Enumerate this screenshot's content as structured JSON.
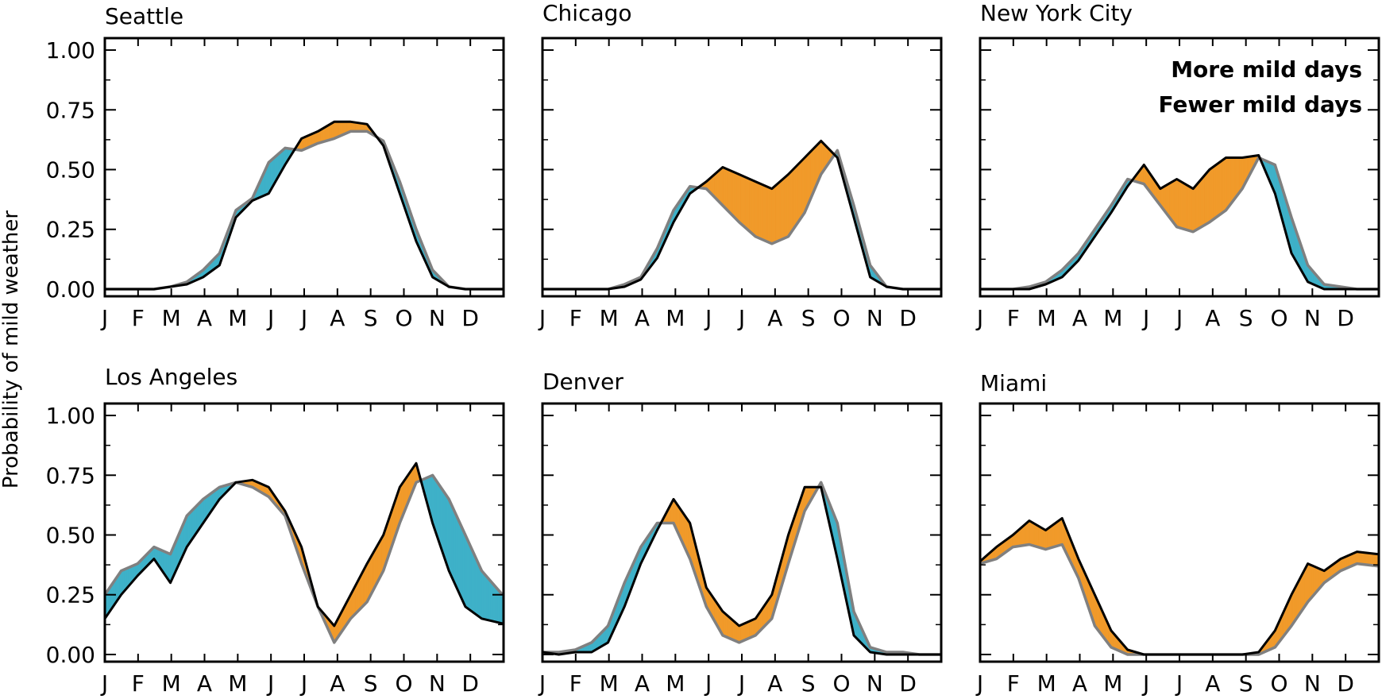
{
  "figure": {
    "ylabel": "Probability of mild weather",
    "legend": {
      "placement": "top-right of New York City panel",
      "more_label": "More mild days",
      "fewer_label": "Fewer mild days"
    },
    "colors": {
      "more": "#3eb1c8",
      "fewer": "#f19a2a",
      "line_a": "#000000",
      "line_b": "#808080"
    },
    "month_ticks": [
      "J",
      "F",
      "M",
      "A",
      "M",
      "J",
      "J",
      "A",
      "S",
      "O",
      "N",
      "D"
    ],
    "y_ticks": [
      "0.00",
      "0.25",
      "0.50",
      "0.75",
      "1.00"
    ]
  },
  "chart_data": [
    {
      "type": "area",
      "title": "Seattle",
      "ylabel": "Probability of mild weather",
      "xlim": [
        0,
        365
      ],
      "ylim": [
        -0.03,
        1.05
      ],
      "x": [
        0,
        15,
        30,
        45,
        60,
        75,
        90,
        105,
        120,
        135,
        150,
        165,
        180,
        195,
        210,
        225,
        240,
        255,
        270,
        285,
        300,
        315,
        330,
        345,
        364
      ],
      "black": [
        0,
        0,
        0,
        0,
        0.01,
        0.02,
        0.05,
        0.1,
        0.3,
        0.37,
        0.4,
        0.52,
        0.63,
        0.66,
        0.7,
        0.7,
        0.69,
        0.6,
        0.4,
        0.2,
        0.05,
        0.01,
        0,
        0,
        0
      ],
      "gray": [
        0,
        0,
        0,
        0,
        0.01,
        0.03,
        0.08,
        0.15,
        0.33,
        0.38,
        0.53,
        0.59,
        0.58,
        0.61,
        0.63,
        0.66,
        0.66,
        0.62,
        0.45,
        0.25,
        0.08,
        0.01,
        0,
        0,
        0
      ]
    },
    {
      "type": "area",
      "title": "Chicago",
      "xlim": [
        0,
        365
      ],
      "ylim": [
        -0.03,
        1.05
      ],
      "x": [
        0,
        15,
        30,
        45,
        60,
        75,
        90,
        105,
        120,
        135,
        150,
        165,
        180,
        195,
        210,
        225,
        240,
        255,
        270,
        285,
        300,
        315,
        330,
        345,
        364
      ],
      "black": [
        0,
        0,
        0,
        0,
        0,
        0.01,
        0.04,
        0.13,
        0.28,
        0.4,
        0.45,
        0.51,
        0.48,
        0.45,
        0.42,
        0.48,
        0.55,
        0.62,
        0.55,
        0.3,
        0.05,
        0.01,
        0,
        0,
        0
      ],
      "gray": [
        0,
        0,
        0,
        0,
        0,
        0.02,
        0.05,
        0.17,
        0.33,
        0.43,
        0.42,
        0.35,
        0.28,
        0.22,
        0.19,
        0.22,
        0.32,
        0.48,
        0.58,
        0.35,
        0.1,
        0.01,
        0,
        0,
        0
      ]
    },
    {
      "type": "area",
      "title": "New York City",
      "xlim": [
        0,
        365
      ],
      "ylim": [
        -0.03,
        1.05
      ],
      "x": [
        0,
        15,
        30,
        45,
        60,
        75,
        90,
        105,
        120,
        135,
        150,
        165,
        180,
        195,
        210,
        225,
        240,
        255,
        270,
        285,
        300,
        315,
        330,
        345,
        364
      ],
      "black": [
        0,
        0,
        0,
        0,
        0.02,
        0.05,
        0.12,
        0.22,
        0.32,
        0.43,
        0.52,
        0.42,
        0.46,
        0.42,
        0.5,
        0.55,
        0.55,
        0.56,
        0.4,
        0.15,
        0.03,
        0,
        0,
        0,
        0
      ],
      "gray": [
        0,
        0,
        0,
        0.01,
        0.03,
        0.08,
        0.15,
        0.25,
        0.35,
        0.46,
        0.44,
        0.35,
        0.26,
        0.24,
        0.28,
        0.33,
        0.42,
        0.55,
        0.52,
        0.3,
        0.1,
        0.02,
        0.01,
        0,
        0
      ]
    },
    {
      "type": "area",
      "title": "Los Angeles",
      "xlim": [
        0,
        365
      ],
      "ylim": [
        -0.03,
        1.05
      ],
      "x": [
        0,
        15,
        30,
        45,
        60,
        75,
        90,
        105,
        120,
        135,
        150,
        165,
        180,
        195,
        210,
        225,
        240,
        255,
        270,
        285,
        300,
        315,
        330,
        345,
        364
      ],
      "black": [
        0.15,
        0.25,
        0.33,
        0.4,
        0.3,
        0.45,
        0.55,
        0.65,
        0.72,
        0.73,
        0.7,
        0.6,
        0.45,
        0.2,
        0.12,
        0.25,
        0.38,
        0.5,
        0.7,
        0.8,
        0.55,
        0.35,
        0.2,
        0.15,
        0.13
      ],
      "gray": [
        0.25,
        0.35,
        0.38,
        0.45,
        0.42,
        0.58,
        0.65,
        0.7,
        0.72,
        0.7,
        0.66,
        0.58,
        0.38,
        0.2,
        0.05,
        0.15,
        0.22,
        0.35,
        0.55,
        0.72,
        0.75,
        0.65,
        0.5,
        0.35,
        0.25
      ]
    },
    {
      "type": "area",
      "title": "Denver",
      "xlim": [
        0,
        365
      ],
      "ylim": [
        -0.03,
        1.05
      ],
      "x": [
        0,
        15,
        30,
        45,
        60,
        75,
        90,
        105,
        120,
        135,
        150,
        165,
        180,
        195,
        210,
        225,
        240,
        255,
        270,
        285,
        300,
        315,
        330,
        345,
        364
      ],
      "black": [
        0.01,
        0,
        0.01,
        0.01,
        0.05,
        0.2,
        0.38,
        0.52,
        0.65,
        0.55,
        0.28,
        0.18,
        0.12,
        0.15,
        0.25,
        0.5,
        0.7,
        0.7,
        0.4,
        0.08,
        0.01,
        0,
        0,
        0,
        0
      ],
      "gray": [
        0.01,
        0.01,
        0.02,
        0.05,
        0.12,
        0.3,
        0.45,
        0.55,
        0.55,
        0.4,
        0.2,
        0.08,
        0.05,
        0.08,
        0.15,
        0.38,
        0.6,
        0.72,
        0.55,
        0.18,
        0.03,
        0.01,
        0.01,
        0,
        0
      ]
    },
    {
      "type": "area",
      "title": "Miami",
      "xlim": [
        0,
        365
      ],
      "ylim": [
        -0.03,
        1.05
      ],
      "x": [
        0,
        15,
        30,
        45,
        60,
        75,
        90,
        105,
        120,
        135,
        150,
        165,
        180,
        195,
        210,
        225,
        240,
        255,
        270,
        285,
        300,
        315,
        330,
        345,
        364
      ],
      "black": [
        0.39,
        0.45,
        0.5,
        0.56,
        0.52,
        0.57,
        0.4,
        0.25,
        0.1,
        0.02,
        0,
        0,
        0,
        0,
        0,
        0,
        0,
        0.01,
        0.1,
        0.25,
        0.38,
        0.35,
        0.4,
        0.43,
        0.42
      ],
      "gray": [
        0.38,
        0.4,
        0.45,
        0.46,
        0.44,
        0.46,
        0.32,
        0.12,
        0.03,
        0,
        0,
        0,
        0,
        0,
        0,
        0,
        0,
        0,
        0.03,
        0.12,
        0.22,
        0.3,
        0.35,
        0.38,
        0.37
      ]
    }
  ]
}
